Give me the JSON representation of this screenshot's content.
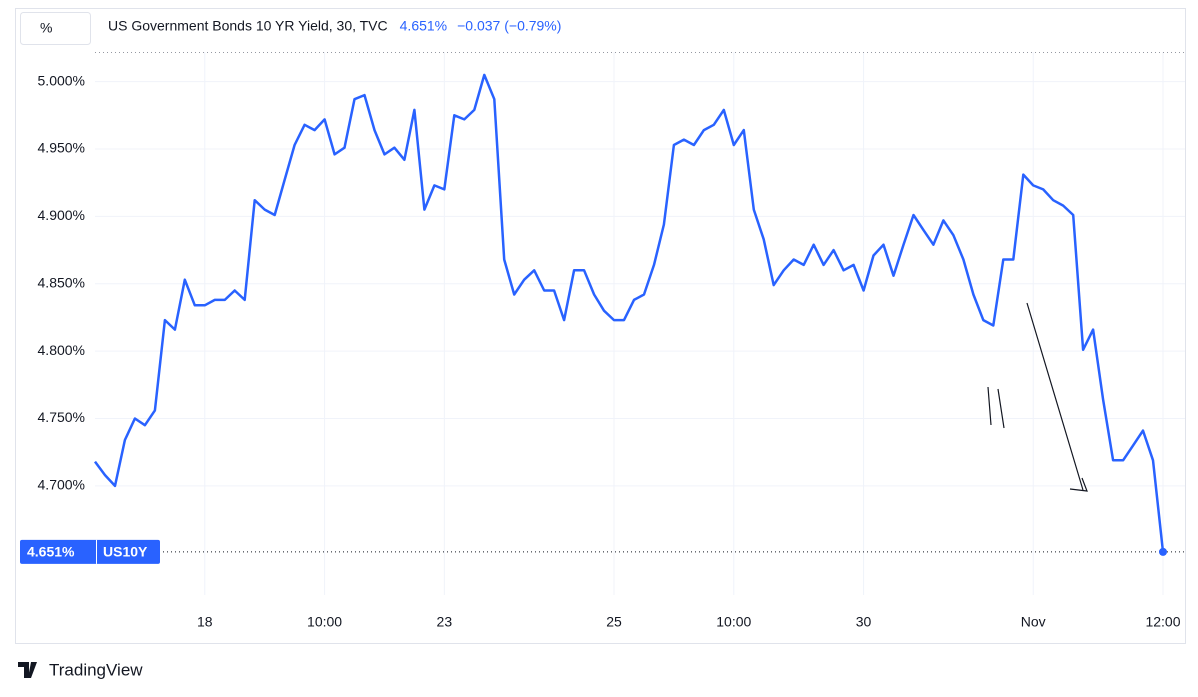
{
  "chart_data": {
    "type": "line",
    "unit_button": "%",
    "title": "US Government Bonds 10 YR Yield, 30, TVC",
    "last": "4.651%",
    "change": "−0.037 (−0.79%)",
    "price_label": "4.651%",
    "symbol": "US10Y",
    "brand": "TradingView",
    "color": "#2962ff",
    "grid": true,
    "categories": [
      null,
      null,
      null,
      null,
      null,
      null,
      null,
      null,
      null,
      null,
      null,
      "18",
      null,
      null,
      null,
      null,
      null,
      null,
      null,
      null,
      null,
      null,
      null,
      "10:00",
      null,
      null,
      null,
      null,
      null,
      null,
      null,
      null,
      null,
      null,
      null,
      "23",
      null,
      null,
      null,
      null,
      null,
      null,
      null,
      null,
      null,
      null,
      null,
      null,
      null,
      null,
      null,
      null,
      "25",
      null,
      null,
      null,
      null,
      null,
      null,
      null,
      null,
      null,
      null,
      null,
      "10:00",
      null,
      null,
      null,
      null,
      null,
      null,
      null,
      null,
      null,
      null,
      null,
      null,
      "30",
      null,
      null,
      null,
      null,
      null,
      null,
      null,
      null,
      null,
      null,
      null,
      null,
      null,
      null,
      null,
      null,
      "Nov",
      null,
      null,
      null,
      null,
      null,
      null,
      null,
      null,
      null,
      null,
      null,
      null,
      "12:00"
    ],
    "values": [
      4.718,
      4.708,
      4.7,
      4.734,
      4.75,
      4.745,
      4.756,
      4.823,
      4.816,
      4.853,
      4.834,
      4.834,
      4.838,
      4.838,
      4.845,
      4.838,
      4.912,
      4.905,
      4.901,
      4.927,
      4.953,
      4.968,
      4.964,
      4.972,
      4.946,
      4.951,
      4.987,
      4.99,
      4.964,
      4.946,
      4.951,
      4.942,
      4.979,
      4.905,
      4.923,
      4.92,
      4.975,
      4.972,
      4.979,
      5.005,
      4.987,
      4.868,
      4.842,
      4.853,
      4.86,
      4.845,
      4.845,
      4.823,
      4.86,
      4.86,
      4.842,
      4.83,
      4.823,
      4.823,
      4.838,
      4.842,
      4.864,
      4.894,
      4.953,
      4.957,
      4.953,
      4.964,
      4.968,
      4.979,
      4.953,
      4.964,
      4.905,
      4.883,
      4.849,
      4.86,
      4.868,
      4.864,
      4.879,
      4.864,
      4.875,
      4.86,
      4.864,
      4.845,
      4.871,
      4.879,
      4.856,
      4.879,
      4.901,
      4.89,
      4.879,
      4.897,
      4.886,
      4.868,
      4.842,
      4.823,
      4.819,
      4.868,
      4.868,
      4.931,
      4.923,
      4.92,
      4.912,
      4.908,
      4.901,
      4.801,
      4.816,
      4.764,
      4.719,
      4.719,
      4.73,
      4.741,
      4.719,
      4.651
    ],
    "ylim": [
      4.619,
      5.022
    ],
    "yticks": [
      {
        "value": 4.7,
        "label": "4.700%"
      },
      {
        "value": 4.75,
        "label": "4.750%"
      },
      {
        "value": 4.8,
        "label": "4.800%"
      },
      {
        "value": 4.85,
        "label": "4.850%"
      },
      {
        "value": 4.9,
        "label": "4.900%"
      },
      {
        "value": 4.95,
        "label": "4.950%"
      },
      {
        "value": 5.0,
        "label": "5.000%"
      }
    ]
  }
}
